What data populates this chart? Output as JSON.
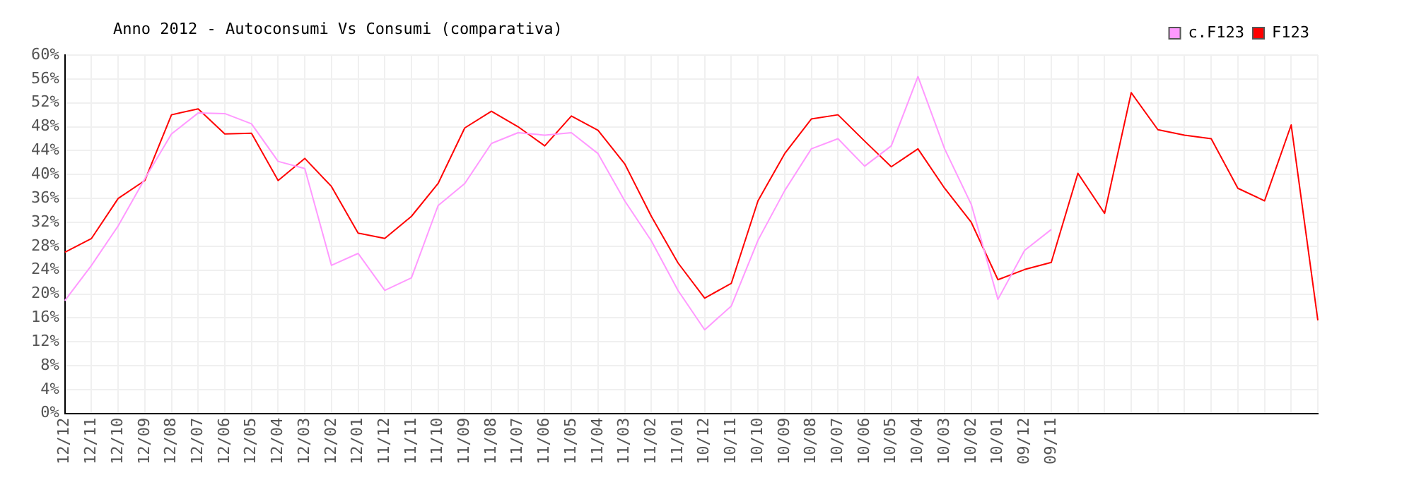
{
  "chart_data": {
    "type": "line",
    "title": "Anno 2012 - Autoconsumi Vs Consumi (comparativa)",
    "categories": [
      "12/12",
      "12/11",
      "12/10",
      "12/09",
      "12/08",
      "12/07",
      "12/06",
      "12/05",
      "12/04",
      "12/03",
      "12/02",
      "12/01",
      "11/12",
      "11/11",
      "11/10",
      "11/09",
      "11/08",
      "11/07",
      "11/06",
      "11/05",
      "11/04",
      "11/03",
      "11/02",
      "11/01",
      "10/12",
      "10/11",
      "10/10",
      "10/09",
      "10/08",
      "10/07",
      "10/06",
      "10/05",
      "10/04",
      "10/03",
      "10/02",
      "10/01",
      "09/12",
      "09/11",
      null,
      null,
      null,
      null,
      null,
      null,
      null,
      null,
      null,
      null
    ],
    "series": [
      {
        "name": "c.F123",
        "color": "#ff99ff",
        "values": [
          18.9,
          24.8,
          31.4,
          39.3,
          46.8,
          50.3,
          50.2,
          48.5,
          42.2,
          41,
          24.8,
          26.8,
          20.6,
          22.7,
          34.8,
          38.5,
          45.2,
          47,
          46.6,
          47,
          43.5,
          35.6,
          28.9,
          20.6,
          14,
          18,
          29,
          37.3,
          44.3,
          46,
          41.4,
          44.8,
          56.4,
          44.3,
          35,
          19.1,
          27.3,
          30.8,
          null,
          null,
          null,
          null,
          null,
          null,
          null,
          null,
          null,
          null
        ]
      },
      {
        "name": "F123",
        "color": "#ff0000",
        "values": [
          27,
          29.3,
          36,
          39,
          50,
          51,
          46.8,
          46.9,
          39,
          42.7,
          38,
          30.2,
          29.3,
          33,
          38.5,
          47.8,
          50.6,
          48,
          44.8,
          49.8,
          47.4,
          41.8,
          33,
          25.2,
          19.3,
          21.8,
          35.6,
          43.5,
          49.3,
          50,
          45.6,
          41.3,
          44.3,
          37.7,
          32,
          22.4,
          24.1,
          25.3,
          40.2,
          33.5,
          53.7,
          47.5,
          46.6,
          46,
          37.7,
          35.6,
          48.3,
          15.6
        ]
      }
    ],
    "ylim": [
      0,
      60
    ],
    "yticks": [
      {
        "value": 0,
        "label": "0%"
      },
      {
        "value": 4,
        "label": "4%"
      },
      {
        "value": 8,
        "label": "8%"
      },
      {
        "value": 12,
        "label": "12%"
      },
      {
        "value": 16,
        "label": "16%"
      },
      {
        "value": 20,
        "label": "20%"
      },
      {
        "value": 24,
        "label": "24%"
      },
      {
        "value": 28,
        "label": "28%"
      },
      {
        "value": 32,
        "label": "32%"
      },
      {
        "value": 36,
        "label": "36%"
      },
      {
        "value": 40,
        "label": "40%"
      },
      {
        "value": 44,
        "label": "44%"
      },
      {
        "value": 48,
        "label": "48%"
      },
      {
        "value": 52,
        "label": "52%"
      },
      {
        "value": 56,
        "label": "56%"
      },
      {
        "value": 60,
        "label": "60%"
      }
    ],
    "grid": true,
    "legend": "top right",
    "marker": "none",
    "line_style": "solid"
  }
}
